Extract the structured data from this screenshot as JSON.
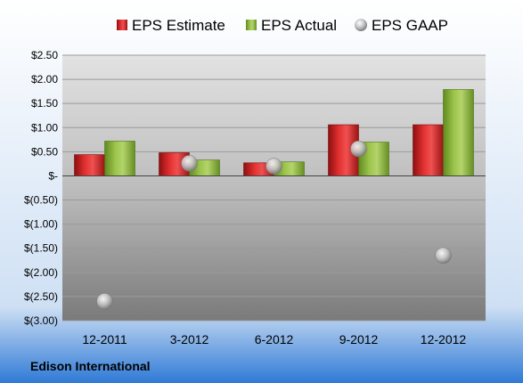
{
  "chart_data": {
    "type": "bar",
    "categories": [
      "12-2011",
      "3-2012",
      "6-2012",
      "9-2012",
      "12-2012"
    ],
    "series": [
      {
        "name": "EPS Estimate",
        "kind": "bar",
        "color": "#cc2a2a",
        "values": [
          0.44,
          0.48,
          0.27,
          1.06,
          1.06
        ]
      },
      {
        "name": "EPS Actual",
        "kind": "bar",
        "color": "#8ab33a",
        "values": [
          0.72,
          0.33,
          0.29,
          0.7,
          1.79
        ]
      },
      {
        "name": "EPS GAAP",
        "kind": "scatter",
        "color": "#b8b8b8",
        "values": [
          -2.6,
          0.26,
          0.2,
          0.56,
          -1.65
        ]
      }
    ],
    "y_ticks": [
      2.5,
      2.0,
      1.5,
      1.0,
      0.5,
      0,
      -0.5,
      -1.0,
      -1.5,
      -2.0,
      -2.5,
      -3.0
    ],
    "y_tick_labels": [
      "$2.50",
      "$2.00",
      "$1.50",
      "$1.00",
      "$0.50",
      "$-",
      "$(0.50)",
      "$(1.00)",
      "$(1.50)",
      "$(2.00)",
      "$(2.50)",
      "$(3.00)"
    ],
    "ylim": [
      -3.0,
      2.5
    ],
    "legend_position": "top",
    "grid": true,
    "company": "Edison International"
  }
}
